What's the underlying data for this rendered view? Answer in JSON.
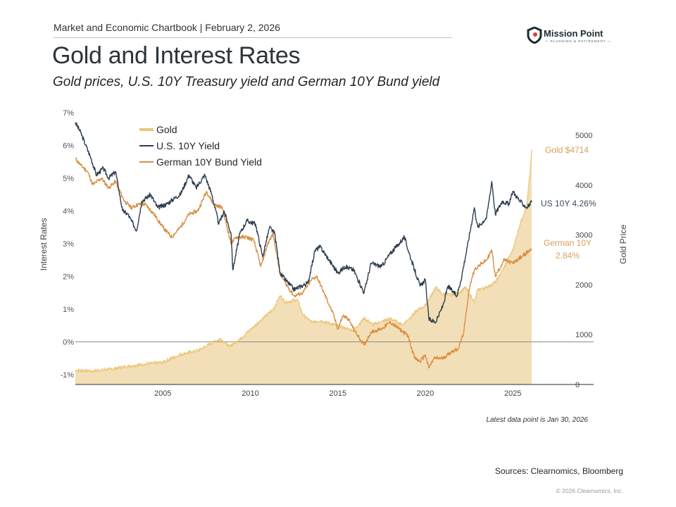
{
  "header": {
    "chartbook": "Market and Economic Chartbook | February 2, 2026",
    "title": "Gold and Interest Rates",
    "subtitle": "Gold prices, U.S. 10Y Treasury yield and German 10Y Bund yield"
  },
  "logo": {
    "name": "Mission Point",
    "tagline": "— PLANNING & RETIREMENT —",
    "icon": "shield-pin-icon",
    "accent": "#e0402f"
  },
  "footer": {
    "note": "Latest data point is Jan 30, 2026",
    "sources": "Sources: Clearnomics, Bloomberg",
    "copyright": "© 2026 Clearnomics, Inc."
  },
  "chart_data": {
    "type": "line",
    "title": "Gold and Interest Rates",
    "xlabel": "",
    "ylabel": "Interest Rates",
    "y2label": "Gold Price",
    "xlim": [
      2000,
      2029.6
    ],
    "ylim": [
      -1.3,
      7
    ],
    "y2lim": [
      0,
      5400
    ],
    "grid": false,
    "legend_position": "top-left",
    "x_ticks": [
      2005,
      2010,
      2015,
      2020,
      2025
    ],
    "y_ticks": [
      "-1%",
      "0%",
      "1%",
      "2%",
      "3%",
      "4%",
      "5%",
      "6%",
      "7%"
    ],
    "y_tick_values": [
      -1,
      0,
      1,
      2,
      3,
      4,
      5,
      6,
      7
    ],
    "y2_ticks": [
      "0",
      "1000",
      "2000",
      "3000",
      "4000",
      "5000"
    ],
    "y2_tick_values": [
      0,
      1000,
      2000,
      3000,
      4000,
      5000
    ],
    "colors": {
      "gold_fill": "#f3dfb7",
      "gold_line": "#ebc77a",
      "us": "#2d3e50",
      "german": "#d98f44",
      "zero_line": "#8a8a8a"
    },
    "annotations": [
      {
        "text": "Gold $4714",
        "series": "Gold"
      },
      {
        "text": "US 10Y 4.26%",
        "series": "U.S. 10Y Yield"
      },
      {
        "text": "German 10Y",
        "text2": "2.84%",
        "series": "German 10Y Bund Yield"
      }
    ],
    "series": [
      {
        "name": "Gold",
        "axis": "right",
        "kind": "area",
        "x": [
          2000.0,
          2001.0,
          2002.0,
          2003.0,
          2004.0,
          2005.0,
          2006.0,
          2006.5,
          2007.0,
          2007.9,
          2008.3,
          2008.8,
          2009.5,
          2010.0,
          2010.8,
          2011.3,
          2011.7,
          2012.0,
          2012.7,
          2013.0,
          2013.5,
          2014.0,
          2015.0,
          2015.9,
          2016.5,
          2017.0,
          2018.0,
          2018.7,
          2019.0,
          2019.6,
          2020.0,
          2020.6,
          2021.0,
          2021.5,
          2022.0,
          2022.3,
          2022.8,
          2023.0,
          2023.5,
          2024.0,
          2024.5,
          2025.0,
          2025.4,
          2025.8,
          2026.0,
          2026.08
        ],
        "values": [
          285,
          270,
          310,
          365,
          410,
          445,
          600,
          640,
          680,
          850,
          920,
          760,
          940,
          1100,
          1350,
          1500,
          1780,
          1650,
          1700,
          1400,
          1250,
          1280,
          1180,
          1080,
          1330,
          1200,
          1320,
          1200,
          1300,
          1500,
          1580,
          1950,
          1800,
          1800,
          1850,
          1950,
          1650,
          1900,
          1950,
          2050,
          2350,
          2700,
          3200,
          3600,
          4300,
          4714
        ]
      },
      {
        "name": "U.S. 10Y Yield",
        "axis": "left",
        "kind": "line",
        "x": [
          2000.0,
          2000.3,
          2000.6,
          2000.9,
          2001.2,
          2001.6,
          2001.9,
          2002.3,
          2002.7,
          2003.0,
          2003.5,
          2003.8,
          2004.3,
          2004.7,
          2005.2,
          2005.7,
          2006.0,
          2006.5,
          2006.9,
          2007.4,
          2007.8,
          2008.2,
          2008.5,
          2008.9,
          2009.0,
          2009.4,
          2009.8,
          2010.3,
          2010.7,
          2011.1,
          2011.4,
          2011.7,
          2012.0,
          2012.5,
          2012.9,
          2013.3,
          2013.7,
          2014.0,
          2014.5,
          2015.0,
          2015.4,
          2015.9,
          2016.5,
          2016.9,
          2017.5,
          2018.0,
          2018.5,
          2018.8,
          2019.2,
          2019.7,
          2020.0,
          2020.2,
          2020.6,
          2021.0,
          2021.3,
          2021.8,
          2022.0,
          2022.4,
          2022.8,
          2023.0,
          2023.5,
          2023.8,
          2024.0,
          2024.4,
          2024.8,
          2025.0,
          2025.4,
          2025.8,
          2026.08
        ],
        "values": [
          6.7,
          6.4,
          6.0,
          5.6,
          5.1,
          5.3,
          5.0,
          5.2,
          4.0,
          3.9,
          3.4,
          4.3,
          4.5,
          4.1,
          4.2,
          4.4,
          4.5,
          5.1,
          4.7,
          5.1,
          4.5,
          3.6,
          4.0,
          3.3,
          2.2,
          3.3,
          3.7,
          3.6,
          2.6,
          3.5,
          3.3,
          2.1,
          1.9,
          1.6,
          1.7,
          1.8,
          2.8,
          2.9,
          2.5,
          2.1,
          2.3,
          2.2,
          1.5,
          2.4,
          2.3,
          2.7,
          3.0,
          3.2,
          2.5,
          1.7,
          1.9,
          0.7,
          0.6,
          1.1,
          1.7,
          1.4,
          1.8,
          2.9,
          4.1,
          3.5,
          3.8,
          4.9,
          3.9,
          4.3,
          4.2,
          4.6,
          4.3,
          4.1,
          4.26
        ]
      },
      {
        "name": "German 10Y Bund Yield",
        "axis": "left",
        "kind": "line",
        "x": [
          2000.0,
          2000.3,
          2000.7,
          2001.0,
          2001.5,
          2001.9,
          2002.3,
          2002.8,
          2003.2,
          2003.6,
          2004.0,
          2004.5,
          2005.0,
          2005.5,
          2006.0,
          2006.5,
          2007.0,
          2007.5,
          2007.9,
          2008.4,
          2008.9,
          2009.2,
          2009.8,
          2010.2,
          2010.6,
          2011.0,
          2011.3,
          2011.7,
          2012.0,
          2012.5,
          2013.0,
          2013.5,
          2013.8,
          2014.2,
          2014.7,
          2015.0,
          2015.3,
          2015.6,
          2016.0,
          2016.5,
          2016.9,
          2017.5,
          2018.0,
          2018.5,
          2019.0,
          2019.4,
          2019.7,
          2020.0,
          2020.2,
          2020.5,
          2021.0,
          2021.5,
          2021.9,
          2022.2,
          2022.5,
          2022.8,
          2023.0,
          2023.5,
          2023.8,
          2024.0,
          2024.5,
          2025.0,
          2025.5,
          2026.08
        ],
        "values": [
          5.6,
          5.4,
          5.2,
          4.8,
          5.0,
          4.7,
          4.9,
          4.3,
          4.1,
          4.2,
          4.2,
          3.9,
          3.5,
          3.2,
          3.5,
          3.9,
          4.0,
          4.6,
          4.2,
          4.1,
          3.0,
          3.2,
          3.2,
          3.1,
          2.3,
          3.0,
          3.3,
          2.1,
          1.8,
          1.4,
          1.5,
          1.9,
          2.0,
          1.5,
          0.9,
          0.4,
          0.8,
          0.7,
          0.3,
          -0.1,
          0.3,
          0.4,
          0.6,
          0.4,
          0.2,
          -0.5,
          -0.6,
          -0.4,
          -0.8,
          -0.5,
          -0.5,
          -0.3,
          -0.2,
          0.3,
          1.6,
          2.2,
          2.3,
          2.5,
          2.8,
          2.0,
          2.5,
          2.4,
          2.6,
          2.84
        ]
      }
    ]
  }
}
